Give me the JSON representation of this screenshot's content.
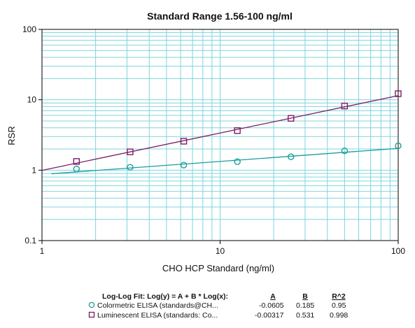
{
  "chart_data": {
    "type": "scatter",
    "title": "Standard Range 1.56-100 ng/ml",
    "xlabel": "CHO HCP Standard (ng/ml)",
    "ylabel": "RSR",
    "xscale": "log",
    "yscale": "log",
    "xlim": [
      1,
      100
    ],
    "ylim": [
      0.1,
      100
    ],
    "x_ticks": [
      1,
      10,
      100
    ],
    "x_tick_labels": [
      "1",
      "10",
      "100"
    ],
    "y_ticks": [
      0.1,
      1,
      10,
      100
    ],
    "y_tick_labels": [
      "0.1",
      "1",
      "10",
      "100"
    ],
    "grid": true,
    "series": [
      {
        "name": "Colormetric ELISA (standards@CH...",
        "marker": "circle",
        "color": "#1a9e9a",
        "x": [
          1.5625,
          3.125,
          6.25,
          12.5,
          25,
          50,
          100
        ],
        "y": [
          1.04,
          1.1,
          1.18,
          1.32,
          1.55,
          1.88,
          2.22
        ],
        "fit": {
          "A": -0.0605,
          "B": 0.185,
          "R2": 0.95
        }
      },
      {
        "name": "Luminescent ELISA (standards: Co...",
        "marker": "square",
        "color": "#7b1d63",
        "x": [
          1.5625,
          3.125,
          6.25,
          12.5,
          25,
          50,
          100
        ],
        "y": [
          1.33,
          1.82,
          2.58,
          3.65,
          5.45,
          8.15,
          12.2
        ],
        "fit": {
          "A": -0.00317,
          "B": 0.531,
          "R2": 0.998
        }
      }
    ],
    "legend": {
      "header": "Log-Log Fit: Log(y) = A + B * Log(x):",
      "col_a": "A",
      "col_b": "B",
      "col_r2": "R^2",
      "rows": [
        {
          "label": "Colormetric ELISA (standards@CH...",
          "a": "-0.0605",
          "b": "0.185",
          "r2": "0.95"
        },
        {
          "label": "Luminescent ELISA (standards: Co...",
          "a": "-0.00317",
          "b": "0.531",
          "r2": "0.998"
        }
      ]
    }
  }
}
